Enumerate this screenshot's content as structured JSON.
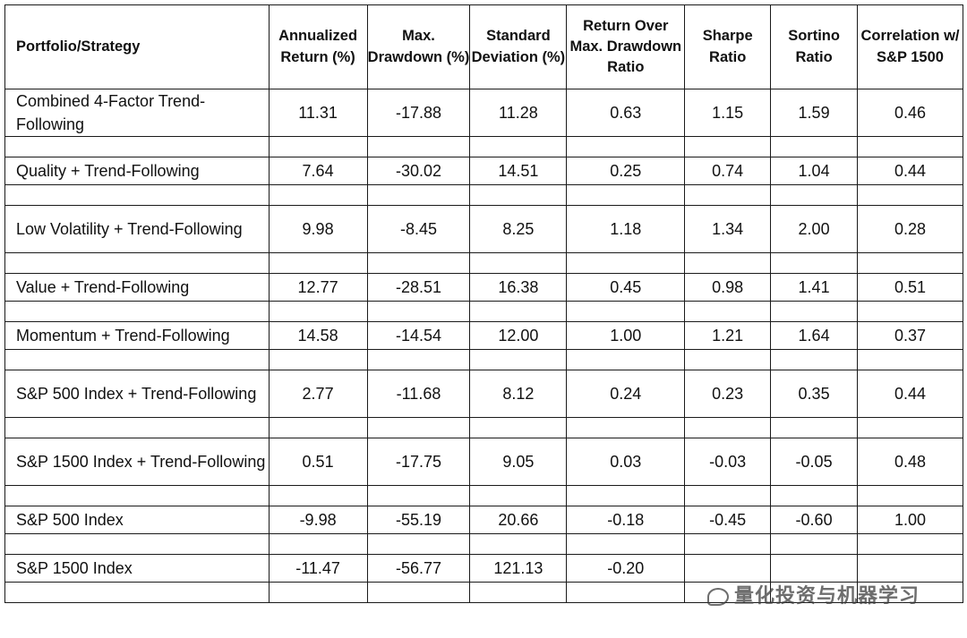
{
  "headers": [
    "Portfolio/Strategy",
    "Annualized Return (%)",
    "Max. Drawdown (%)",
    "Standard Deviation (%)",
    "Return Over Max. Drawdown Ratio",
    "Sharpe Ratio",
    "Sortino Ratio",
    "Correlation w/ S&P 1500"
  ],
  "rows": [
    {
      "name": "Combined 4-Factor Trend-Following",
      "values": [
        "11.31",
        "-17.88",
        "11.28",
        "0.63",
        "1.15",
        "1.59",
        "0.46"
      ]
    },
    {
      "name": "Quality + Trend-Following",
      "values": [
        "7.64",
        "-30.02",
        "14.51",
        "0.25",
        "0.74",
        "1.04",
        "0.44"
      ]
    },
    {
      "name": "Low Volatility + Trend-Following",
      "values": [
        "9.98",
        "-8.45",
        "8.25",
        "1.18",
        "1.34",
        "2.00",
        "0.28"
      ]
    },
    {
      "name": "Value + Trend-Following",
      "values": [
        "12.77",
        "-28.51",
        "16.38",
        "0.45",
        "0.98",
        "1.41",
        "0.51"
      ]
    },
    {
      "name": "Momentum + Trend-Following",
      "values": [
        "14.58",
        "-14.54",
        "12.00",
        "1.00",
        "1.21",
        "1.64",
        "0.37"
      ]
    },
    {
      "name": "S&P 500 Index + Trend-Following",
      "values": [
        "2.77",
        "-11.68",
        "8.12",
        "0.24",
        "0.23",
        "0.35",
        "0.44"
      ]
    },
    {
      "name": "S&P 1500 Index + Trend-Following",
      "values": [
        "0.51",
        "-17.75",
        "9.05",
        "0.03",
        "-0.03",
        "-0.05",
        "0.48"
      ]
    },
    {
      "name": "S&P 500 Index",
      "values": [
        "-9.98",
        "-55.19",
        "20.66",
        "-0.18",
        "-0.45",
        "-0.60",
        "1.00"
      ]
    },
    {
      "name": "S&P 1500 Index",
      "values": [
        "-11.47",
        "-56.77",
        "121.13",
        "-0.20",
        "",
        "",
        ""
      ]
    }
  ],
  "watermark": "量化投资与机器学习"
}
